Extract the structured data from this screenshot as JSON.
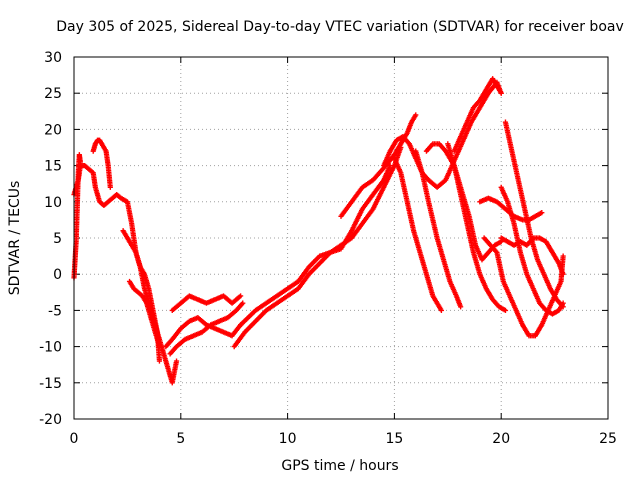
{
  "chart_data": {
    "type": "scatter",
    "title": "Day 305 of 2025, Sidereal Day-to-day VTEC variation (SDTVAR) for receiver boav",
    "xlabel": "GPS time / hours",
    "ylabel": "SDTVAR / TECUs",
    "xlim": [
      0,
      25
    ],
    "ylim": [
      -20,
      30
    ],
    "xticks": [
      0,
      5,
      10,
      15,
      20,
      25
    ],
    "yticks": [
      -20,
      -15,
      -10,
      -5,
      0,
      5,
      10,
      15,
      20,
      25,
      30
    ],
    "grid": true,
    "marker": "+",
    "color": "#ff0000",
    "series": [
      {
        "name": "trace-1",
        "x": [
          0.0,
          0.1,
          0.2,
          0.3,
          0.5,
          0.7,
          0.9,
          1.0,
          1.2,
          1.4,
          1.6,
          1.8,
          2.0,
          2.2,
          2.5,
          2.7,
          2.9,
          3.1,
          3.3,
          3.5,
          3.8,
          4.0,
          4.2,
          4.4,
          4.6,
          4.8
        ],
        "y": [
          11,
          12,
          13,
          15,
          15,
          14.5,
          14,
          12,
          10,
          9.5,
          10,
          10.5,
          11,
          10.5,
          10,
          7,
          3,
          1,
          -2,
          -4,
          -7,
          -9,
          -11,
          -13,
          -15,
          -12
        ]
      },
      {
        "name": "trace-2",
        "x": [
          0.9,
          1.0,
          1.1,
          1.2,
          1.3,
          1.5,
          1.6,
          1.7
        ],
        "y": [
          17,
          18,
          18.5,
          18.5,
          18,
          17,
          15,
          12
        ]
      },
      {
        "name": "trace-3",
        "x": [
          0.0,
          0.05,
          0.1,
          0.15,
          0.2,
          0.25,
          0.3
        ],
        "y": [
          -0.5,
          2,
          4.5,
          9,
          14,
          16.5,
          15.5
        ]
      },
      {
        "name": "trace-4",
        "x": [
          2.3,
          2.5,
          2.7,
          2.9,
          3.1,
          3.3,
          3.5,
          3.7,
          3.9,
          4.0
        ],
        "y": [
          6,
          5,
          4,
          3,
          1,
          0,
          -2,
          -5,
          -8,
          -12
        ]
      },
      {
        "name": "trace-5",
        "x": [
          2.6,
          2.8,
          3.0,
          3.2,
          3.4,
          3.6,
          3.8,
          4.0
        ],
        "y": [
          -1,
          -2,
          -2.5,
          -3,
          -4,
          -6,
          -8,
          -10
        ]
      },
      {
        "name": "trace-6",
        "x": [
          4.3,
          4.6,
          5.0,
          5.4,
          5.8,
          6.2,
          6.6,
          7.0,
          7.4,
          7.8
        ],
        "y": [
          -10,
          -9,
          -7.5,
          -6.5,
          -6,
          -7,
          -7.5,
          -8,
          -8.5,
          -7
        ]
      },
      {
        "name": "trace-7",
        "x": [
          4.5,
          4.8,
          5.2,
          5.6,
          6.0,
          6.4,
          6.8,
          7.2,
          7.6,
          7.9
        ],
        "y": [
          -11,
          -10,
          -9,
          -8.5,
          -8,
          -7,
          -6.5,
          -6,
          -5,
          -4
        ]
      },
      {
        "name": "trace-8",
        "x": [
          4.6,
          5.0,
          5.4,
          5.8,
          6.2,
          6.6,
          7.0,
          7.4,
          7.8
        ],
        "y": [
          -5,
          -4,
          -3,
          -3.5,
          -4,
          -3.5,
          -3,
          -4,
          -3
        ]
      },
      {
        "name": "trace-9",
        "x": [
          7.5,
          8.0,
          8.5,
          9.0,
          9.5,
          10.0,
          10.5,
          11.0,
          11.5,
          12.0,
          12.5,
          13.0,
          13.5,
          14.0,
          14.5,
          15.0,
          15.3
        ],
        "y": [
          -10,
          -8,
          -6.5,
          -5,
          -4,
          -3,
          -2,
          0,
          1.5,
          3,
          4,
          5,
          7,
          9,
          12,
          15,
          17.5
        ]
      },
      {
        "name": "trace-10",
        "x": [
          7.8,
          8.5,
          9.0,
          9.5,
          10.0,
          10.5,
          11.0,
          11.5,
          12.0,
          12.5,
          13.0,
          13.5,
          14.0,
          14.5,
          14.8
        ],
        "y": [
          -7,
          -5,
          -4,
          -3,
          -2,
          -1,
          1,
          2.5,
          3,
          3.5,
          6,
          9,
          11,
          13,
          15
        ]
      },
      {
        "name": "trace-11",
        "x": [
          12.5,
          13.0,
          13.5,
          14.0,
          14.3,
          14.6,
          15.0,
          15.3,
          15.6,
          15.8,
          16.0
        ],
        "y": [
          8,
          10,
          12,
          13,
          14,
          15,
          16.5,
          18,
          19.5,
          21,
          22
        ]
      },
      {
        "name": "trace-12",
        "x": [
          14.5,
          14.8,
          15.1,
          15.4,
          15.7,
          16.0,
          16.3,
          16.6,
          17.0,
          17.4,
          17.7,
          18.0,
          18.3,
          18.6,
          19.0,
          19.4,
          19.8,
          20.0
        ],
        "y": [
          15,
          17,
          18.5,
          19,
          18,
          16,
          14,
          13,
          12,
          13,
          15,
          17,
          19,
          21,
          23,
          25,
          26.5,
          25
        ]
      },
      {
        "name": "trace-13",
        "x": [
          15.0,
          15.3,
          15.6,
          15.9,
          16.2,
          16.5,
          16.8,
          17.0,
          17.2
        ],
        "y": [
          16,
          14,
          10,
          6,
          3,
          0,
          -3,
          -4,
          -5
        ]
      },
      {
        "name": "trace-14",
        "x": [
          16.0,
          16.3,
          16.6,
          17.0,
          17.3,
          17.6,
          17.9,
          18.1
        ],
        "y": [
          17,
          14,
          10,
          5,
          2,
          -1,
          -3,
          -4.5
        ]
      },
      {
        "name": "trace-15",
        "x": [
          16.5,
          16.8,
          17.1,
          17.4,
          17.8,
          18.2,
          18.5,
          18.8,
          19.1,
          19.4,
          19.7,
          20.0
        ],
        "y": [
          17,
          18,
          18,
          17,
          15,
          11,
          8,
          4,
          2,
          3,
          4,
          4.5
        ]
      },
      {
        "name": "trace-16",
        "x": [
          17.5,
          17.8,
          18.1,
          18.4,
          18.7,
          19.0,
          19.3,
          19.6,
          19.9,
          20.2
        ],
        "y": [
          18,
          15,
          11,
          7,
          3,
          0,
          -2,
          -3.5,
          -4.5,
          -5
        ]
      },
      {
        "name": "trace-17",
        "x": [
          17.8,
          18.1,
          18.4,
          18.7,
          19.0,
          19.3,
          19.6,
          20.0
        ],
        "y": [
          17,
          19,
          21,
          23,
          24,
          25.5,
          27,
          25
        ]
      },
      {
        "name": "trace-18",
        "x": [
          19.0,
          19.4,
          19.8,
          20.2,
          20.6,
          21.0,
          21.3,
          21.6,
          21.9
        ],
        "y": [
          10,
          10.5,
          10,
          9,
          8,
          7.5,
          7.5,
          8,
          8.5
        ]
      },
      {
        "name": "trace-19",
        "x": [
          20.2,
          20.5,
          20.8,
          21.1,
          21.4,
          21.7,
          22.0,
          22.3,
          22.6,
          22.9
        ],
        "y": [
          21,
          17,
          13,
          9,
          5,
          2,
          0,
          -2,
          -3.5,
          -4.5
        ]
      },
      {
        "name": "trace-20",
        "x": [
          20.0,
          20.3,
          20.6,
          20.9,
          21.2,
          21.5,
          21.8,
          22.1,
          22.4,
          22.7,
          22.9
        ],
        "y": [
          5,
          4.5,
          4,
          4.5,
          4,
          5,
          5,
          4.5,
          3,
          1.5,
          0
        ]
      },
      {
        "name": "trace-21",
        "x": [
          19.2,
          19.5,
          19.8,
          20.1,
          20.4,
          20.7,
          21.0,
          21.3,
          21.6,
          21.9,
          22.2,
          22.5,
          22.8,
          22.9
        ],
        "y": [
          5,
          4,
          3,
          -1,
          -3,
          -5,
          -7,
          -8.5,
          -8.5,
          -7,
          -5,
          -3,
          -1,
          2.5
        ]
      },
      {
        "name": "trace-22",
        "x": [
          20.0,
          20.3,
          20.6,
          20.9,
          21.2,
          21.5,
          21.8,
          22.1,
          22.4,
          22.7,
          22.9
        ],
        "y": [
          12,
          10,
          7,
          3,
          0,
          -2,
          -4,
          -5,
          -5.5,
          -5,
          -4
        ]
      }
    ]
  }
}
